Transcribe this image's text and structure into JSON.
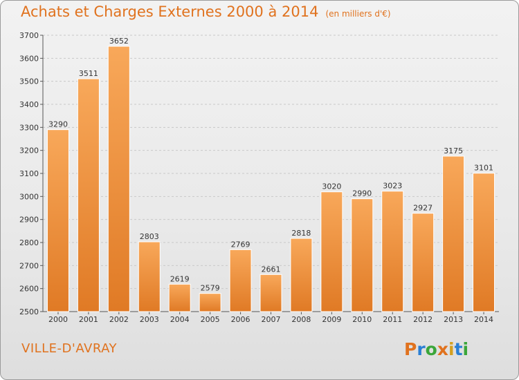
{
  "header": {
    "title": "Achats et Charges Externes 2000 à 2014",
    "unit": "(en milliers d'€)"
  },
  "footer": {
    "commune": "VILLE-D'AVRAY",
    "logo_text": "Proxiti"
  },
  "colors": {
    "accent": "#e0721e",
    "bar_top": "#f8a85a",
    "bar_bottom": "#e07a25",
    "logo_letters": [
      "#e0721e",
      "#2a7fd4",
      "#3aa63a",
      "#e0721e",
      "#d4a020",
      "#2a7fd4",
      "#3aa63a"
    ]
  },
  "chart_data": {
    "type": "bar",
    "title": "Achats et Charges Externes 2000 à 2014",
    "subtitle": "(en milliers d'€)",
    "categories": [
      "2000",
      "2001",
      "2002",
      "2003",
      "2004",
      "2005",
      "2006",
      "2007",
      "2008",
      "2009",
      "2010",
      "2011",
      "2012",
      "2013",
      "2014"
    ],
    "values": [
      3290,
      3511,
      3652,
      2803,
      2619,
      2579,
      2769,
      2661,
      2818,
      3020,
      2990,
      3023,
      2927,
      3175,
      3101
    ],
    "ylim": [
      2500,
      3700
    ],
    "yticks": [
      2500,
      2600,
      2700,
      2800,
      2900,
      3000,
      3100,
      3200,
      3300,
      3400,
      3500,
      3600,
      3700
    ],
    "grid": true,
    "xlabel": "",
    "ylabel": ""
  }
}
